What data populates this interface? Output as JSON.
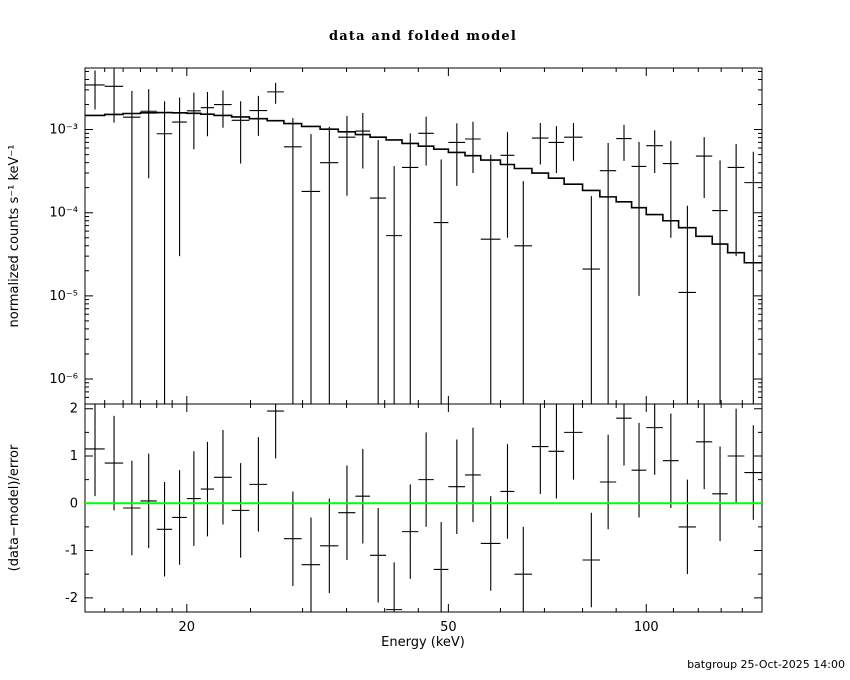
{
  "page": {
    "background": "#ffffff"
  },
  "chart_data": {
    "type": "line+scatter",
    "title": "data and folded model",
    "xlabel": "Energy (keV)",
    "ylabel_top": "normalized counts s⁻¹ keV⁻¹",
    "ylabel_bottom": "(data−model)/error",
    "footer": "batgroup 25-Oct-2025 14:00",
    "x_scale": "log",
    "x_range": [
      14,
      150
    ],
    "x_ticks_major": [
      20,
      50,
      100
    ],
    "x_ticks_minor": [
      15,
      16,
      17,
      18,
      19,
      25,
      30,
      35,
      40,
      45,
      60,
      70,
      80,
      90,
      110,
      120,
      130,
      140,
      150
    ],
    "top_panel": {
      "y_scale": "log",
      "y_range": [
        5e-07,
        0.0055
      ],
      "y_ticks_major": [
        0.001,
        0.0001,
        1e-05,
        1e-06
      ],
      "model_color": "#000000",
      "data_color": "#000000",
      "model_step_edges_keV": [
        14,
        15,
        16,
        17,
        18,
        19,
        20,
        21,
        22,
        23.4,
        24.9,
        26.5,
        28.1,
        29.9,
        31.9,
        34,
        36.1,
        38,
        40.2,
        42.5,
        45,
        47.5,
        50,
        53,
        56,
        60,
        63,
        67,
        71,
        75,
        80,
        85,
        90,
        95,
        100,
        106,
        112,
        119,
        126,
        133,
        141,
        150
      ],
      "model_values": [
        0.00148,
        0.00152,
        0.00156,
        0.00159,
        0.0016,
        0.00159,
        0.00157,
        0.00153,
        0.00148,
        0.00142,
        0.00135,
        0.00128,
        0.00118,
        0.00109,
        0.00101,
        0.00094,
        0.00087,
        0.00081,
        0.00075,
        0.00068,
        0.00063,
        0.00058,
        0.00053,
        0.000485,
        0.00043,
        0.00038,
        0.00034,
        0.0003,
        0.00026,
        0.00022,
        0.000185,
        0.000155,
        0.000135,
        0.000115,
        9.5e-05,
        8e-05,
        6.6e-05,
        5.2e-05,
        4.2e-05,
        3.3e-05,
        2.5e-05
      ],
      "data": {
        "y": [
          0.00344,
          0.00331,
          0.00141,
          0.00166,
          0.00089,
          0.00123,
          0.00168,
          0.00183,
          0.002,
          0.00129,
          0.00169,
          0.00284,
          0.00062,
          0.00018,
          0.0004,
          0.00081,
          0.00096,
          0.00015,
          5.3e-05,
          0.00035,
          0.0009,
          7.6e-05,
          0.0007,
          0.00077,
          4.8e-05,
          0.00049,
          4e-05,
          0.00079,
          0.0007,
          0.00081,
          2.1e-05,
          0.00032,
          0.00078,
          0.00036,
          0.00064,
          0.00039,
          1.1e-05,
          0.00048,
          0.000106,
          0.00035,
          0.00023
        ],
        "yerr": [
          0.0017,
          0.0021,
          0.0015,
          0.0014,
          0.0013,
          0.0012,
          0.0011,
          0.001,
          0.00095,
          0.0009,
          0.00085,
          0.0008,
          0.00075,
          0.0007,
          0.00068,
          0.00065,
          0.00062,
          0.0006,
          0.00031,
          0.00055,
          0.00053,
          0.00036,
          0.00049,
          0.00047,
          0.00045,
          0.00044,
          0.0002,
          0.00041,
          0.0004,
          0.00039,
          0.000137,
          0.00037,
          0.00036,
          0.00035,
          0.00034,
          0.00034,
          0.00011,
          0.00033,
          0.00032,
          0.00032,
          0.00031
        ]
      }
    },
    "bottom_panel": {
      "y_scale": "linear",
      "y_range": [
        -2.3,
        2.1
      ],
      "y_ticks_major": [
        -2,
        -1,
        0,
        1,
        2
      ],
      "zero_line_color": "#00ff00",
      "residual_bar_halflength": 1,
      "residuals_sigma": [
        1.15,
        0.85,
        -0.1,
        0.05,
        -0.55,
        -0.3,
        0.1,
        0.3,
        0.55,
        -0.15,
        0.4,
        1.95,
        -0.75,
        -1.3,
        -0.9,
        -0.2,
        0.15,
        -1.1,
        -2.25,
        -0.6,
        0.5,
        -1.4,
        0.35,
        0.6,
        -0.85,
        0.25,
        -1.5,
        1.2,
        1.1,
        1.5,
        -1.2,
        0.45,
        1.8,
        0.7,
        1.6,
        0.9,
        -0.5,
        1.3,
        0.2,
        1.0,
        0.65
      ]
    }
  }
}
